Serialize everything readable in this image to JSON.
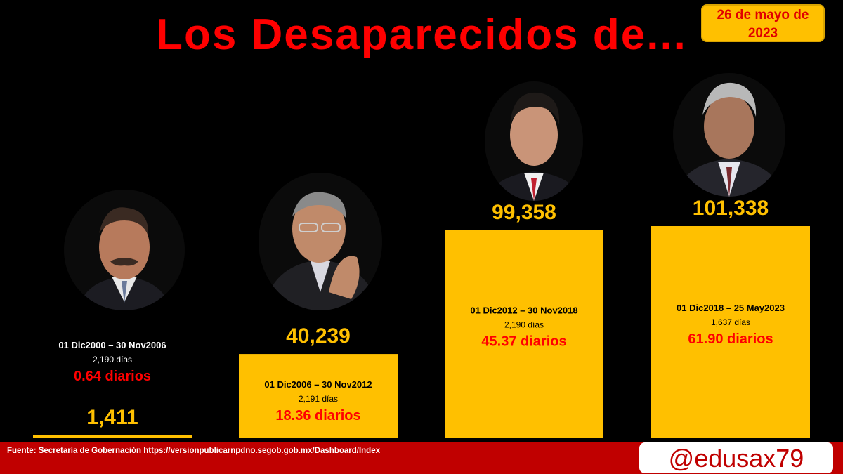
{
  "header": {
    "title": "Los Desaparecidos de...",
    "date": "26 de mayo de 2023"
  },
  "footer": {
    "source": "Fuente: Secretaría de Gobernación https://versionpublicarnpdno.segob.gob.mx/Dashboard/Index",
    "handle": "@edusax79"
  },
  "colors": {
    "bar": "#ffc000",
    "value_text": "#ffc000",
    "rate_text": "#ff0000",
    "background": "#000000",
    "title": "#ff0000",
    "footer": "#c00000"
  },
  "portraits": [
    {
      "icon": "person-portrait-icon"
    },
    {
      "icon": "person-portrait-icon"
    },
    {
      "icon": "person-portrait-icon"
    },
    {
      "icon": "person-portrait-icon"
    }
  ],
  "chart_data": {
    "type": "bar",
    "title": "Los Desaparecidos de...",
    "categories": [
      "01 Dic2000 – 30 Nov2006",
      "01 Dic2006 – 30 Nov2012",
      "01 Dic2012 – 30 Nov2018",
      "01 Dic2018 – 25 May2023"
    ],
    "values": [
      1411,
      40239,
      99358,
      101338
    ],
    "value_labels": [
      "1,411",
      "40,239",
      "99,358",
      "101,338"
    ],
    "days": [
      "2,190 días",
      "2,191 días",
      "2,190 días",
      "1,637 días"
    ],
    "rates": [
      "0.64 diarios",
      "18.36 diarios",
      "45.37 diarios",
      "61.90 diarios"
    ],
    "ylim": [
      0,
      101338
    ],
    "grid": false,
    "legend": "none"
  }
}
